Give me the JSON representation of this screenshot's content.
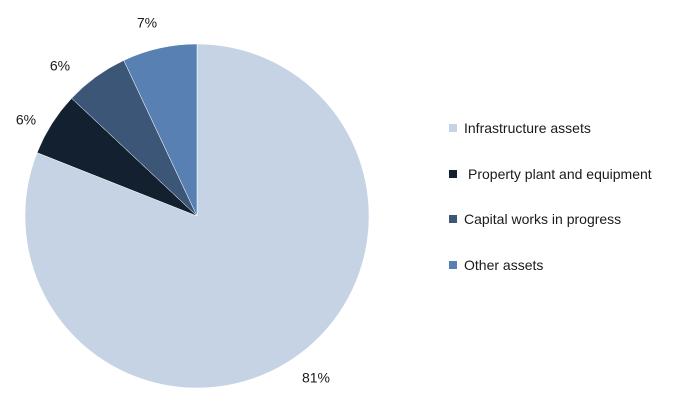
{
  "chart_data": {
    "type": "pie",
    "title": "",
    "categories": [
      "Infrastructure assets",
      "Property plant and equipment",
      "Capital works in progress",
      "Other assets"
    ],
    "values": [
      81,
      6,
      6,
      7
    ],
    "labels": [
      "81%",
      "6%",
      "6%",
      "7%"
    ],
    "colors": [
      "#c5d3e5",
      "#12202f",
      "#3b5676",
      "#5880b2"
    ],
    "start_angle_deg": 0,
    "direction": "clockwise",
    "legend_position": "right"
  }
}
